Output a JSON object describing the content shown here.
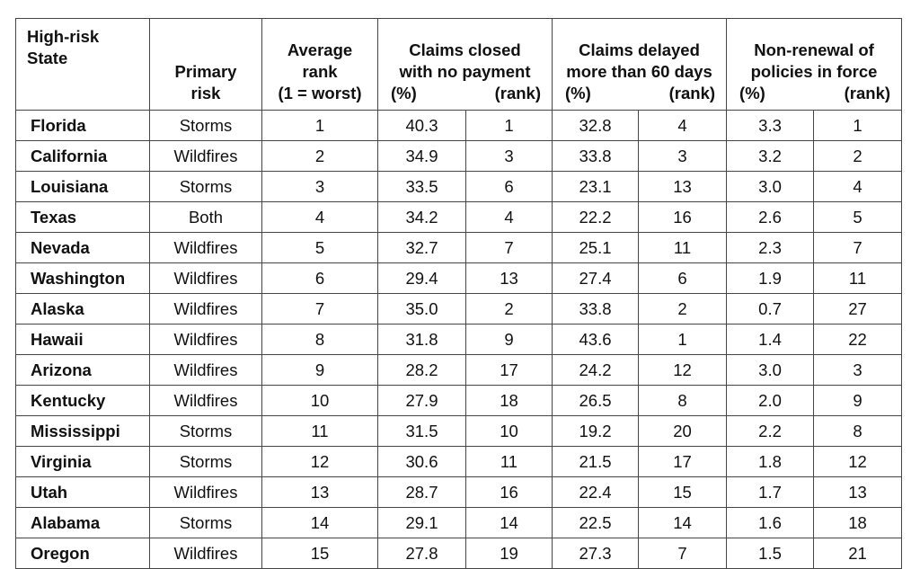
{
  "headers": {
    "state": [
      "High-risk",
      "State"
    ],
    "primary_risk": [
      "Primary",
      "risk"
    ],
    "average_rank": [
      "Average",
      "rank",
      "(1 = worst)"
    ],
    "claims_closed": [
      "Claims closed",
      "with no payment"
    ],
    "claims_delayed": [
      "Claims delayed",
      "more than 60 days"
    ],
    "non_renewal": [
      "Non-renewal of",
      "policies in force"
    ],
    "pct": "(%)",
    "rank": "(rank)"
  },
  "rows": [
    [
      "Florida",
      "Storms",
      "1",
      "40.3",
      "1",
      "32.8",
      "4",
      "3.3",
      "1"
    ],
    [
      "California",
      "Wildfires",
      "2",
      "34.9",
      "3",
      "33.8",
      "3",
      "3.2",
      "2"
    ],
    [
      "Louisiana",
      "Storms",
      "3",
      "33.5",
      "6",
      "23.1",
      "13",
      "3.0",
      "4"
    ],
    [
      "Texas",
      "Both",
      "4",
      "34.2",
      "4",
      "22.2",
      "16",
      "2.6",
      "5"
    ],
    [
      "Nevada",
      "Wildfires",
      "5",
      "32.7",
      "7",
      "25.1",
      "11",
      "2.3",
      "7"
    ],
    [
      "Washington",
      "Wildfires",
      "6",
      "29.4",
      "13",
      "27.4",
      "6",
      "1.9",
      "11"
    ],
    [
      "Alaska",
      "Wildfires",
      "7",
      "35.0",
      "2",
      "33.8",
      "2",
      "0.7",
      "27"
    ],
    [
      "Hawaii",
      "Wildfires",
      "8",
      "31.8",
      "9",
      "43.6",
      "1",
      "1.4",
      "22"
    ],
    [
      "Arizona",
      "Wildfires",
      "9",
      "28.2",
      "17",
      "24.2",
      "12",
      "3.0",
      "3"
    ],
    [
      "Kentucky",
      "Wildfires",
      "10",
      "27.9",
      "18",
      "26.5",
      "8",
      "2.0",
      "9"
    ],
    [
      "Mississippi",
      "Storms",
      "11",
      "31.5",
      "10",
      "19.2",
      "20",
      "2.2",
      "8"
    ],
    [
      "Virginia",
      "Storms",
      "12",
      "30.6",
      "11",
      "21.5",
      "17",
      "1.8",
      "12"
    ],
    [
      "Utah",
      "Wildfires",
      "13",
      "28.7",
      "16",
      "22.4",
      "15",
      "1.7",
      "13"
    ],
    [
      "Alabama",
      "Storms",
      "14",
      "29.1",
      "14",
      "22.5",
      "14",
      "1.6",
      "18"
    ],
    [
      "Oregon",
      "Wildfires",
      "15",
      "27.8",
      "19",
      "27.3",
      "7",
      "1.5",
      "21"
    ]
  ]
}
